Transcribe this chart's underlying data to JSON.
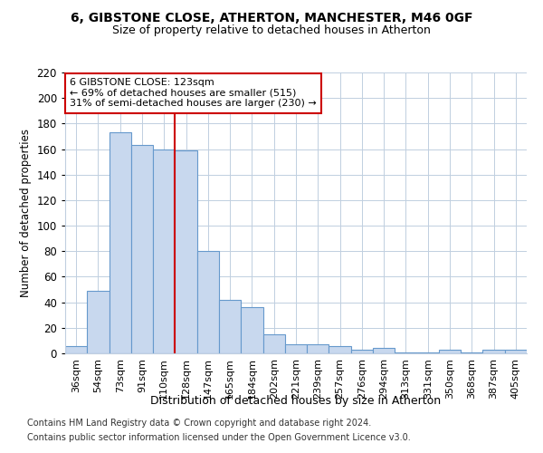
{
  "title_line1": "6, GIBSTONE CLOSE, ATHERTON, MANCHESTER, M46 0GF",
  "title_line2": "Size of property relative to detached houses in Atherton",
  "xlabel": "Distribution of detached houses by size in Atherton",
  "ylabel": "Number of detached properties",
  "footer_line1": "Contains HM Land Registry data © Crown copyright and database right 2024.",
  "footer_line2": "Contains public sector information licensed under the Open Government Licence v3.0.",
  "categories": [
    "36sqm",
    "54sqm",
    "73sqm",
    "91sqm",
    "110sqm",
    "128sqm",
    "147sqm",
    "165sqm",
    "184sqm",
    "202sqm",
    "221sqm",
    "239sqm",
    "257sqm",
    "276sqm",
    "294sqm",
    "313sqm",
    "331sqm",
    "350sqm",
    "368sqm",
    "387sqm",
    "405sqm"
  ],
  "values": [
    6,
    49,
    173,
    163,
    160,
    159,
    80,
    42,
    36,
    15,
    7,
    7,
    6,
    3,
    4,
    1,
    1,
    3,
    1,
    3,
    3
  ],
  "bar_color": "#c8d8ee",
  "bar_edge_color": "#6699cc",
  "annotation_text_line1": "6 GIBSTONE CLOSE: 123sqm",
  "annotation_text_line2": "← 69% of detached houses are smaller (515)",
  "annotation_text_line3": "31% of semi-detached houses are larger (230) →",
  "vline_x_index": 5,
  "ylim": [
    0,
    220
  ],
  "yticks": [
    0,
    20,
    40,
    60,
    80,
    100,
    120,
    140,
    160,
    180,
    200,
    220
  ],
  "annotation_box_color": "#ffffff",
  "annotation_border_color": "#cc0000",
  "vline_color": "#cc0000",
  "background_color": "#ffffff",
  "plot_bg_color": "#ffffff",
  "grid_color": "#c0cfe0"
}
